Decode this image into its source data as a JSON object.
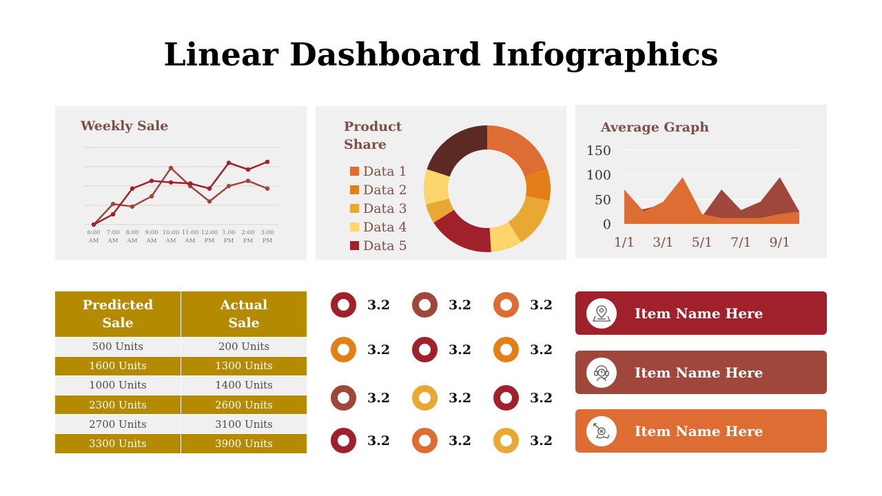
{
  "title": "Linear Dashboard Infographics",
  "colors": {
    "dark_red": "#a0202b",
    "brown_red": "#9e473a",
    "orange": "#dd6d33",
    "deep_orange": "#e27f17",
    "gold": "#e8a833",
    "yellow": "#fcd66a",
    "dark_brown": "#5c2a22",
    "table_gold": "#b38a00",
    "panel_bg": "#f1f0f0",
    "title_brown": "#7b5047"
  },
  "chart_data": [
    {
      "type": "line",
      "title": "Weekly Sale",
      "categories": [
        "6:00 AM",
        "7:00 AM",
        "8:00 AM",
        "9:00 AM",
        "10:00 AM",
        "11:00 AM",
        "12:00 PM",
        "1:00 PM",
        "2:00 PM",
        "3:00 PM"
      ],
      "category_lines": [
        [
          "6:00",
          "AM"
        ],
        [
          "7:00",
          "AM"
        ],
        [
          "8:00",
          "AM"
        ],
        [
          "9:00",
          "AM"
        ],
        [
          "10:00",
          "AM"
        ],
        [
          "11:00",
          "AM"
        ],
        [
          "12:00",
          "PM"
        ],
        [
          "1:00",
          "PM"
        ],
        [
          "2:00",
          "PM"
        ],
        [
          "3:00",
          "PM"
        ]
      ],
      "series": [
        {
          "values": [
            0,
            40,
            35,
            55,
            110,
            75,
            45,
            75,
            85,
            70
          ],
          "color": "#9e473a"
        },
        {
          "values": [
            0,
            20,
            70,
            85,
            82,
            80,
            70,
            120,
            107,
            122
          ],
          "color": "#a0202b"
        }
      ],
      "ylim": [
        0,
        150
      ],
      "grid": true
    },
    {
      "type": "pie",
      "title": "Product Share",
      "donut": true,
      "slices": [
        {
          "label": "Data 1",
          "value": 20,
          "color": "#dd6d33"
        },
        {
          "label": "Data 2",
          "value": 8,
          "color": "#e27f17"
        },
        {
          "label": "Data 3",
          "value": 13,
          "color": "#e8a833"
        },
        {
          "label": "Data 4",
          "value": 8,
          "color": "#fcd66a"
        },
        {
          "label": "Data 5",
          "value": 17,
          "color": "#a0202b"
        },
        {
          "label": "",
          "value": 5,
          "color": "#e8a833"
        },
        {
          "label": "",
          "value": 9,
          "color": "#fcd66a"
        },
        {
          "label": "",
          "value": 20,
          "color": "#5c2a22"
        }
      ],
      "legend": [
        "Data 1",
        "Data 2",
        "Data 3",
        "Data 4",
        "Data 5"
      ],
      "legend_colors": [
        "#dd6d33",
        "#e27f17",
        "#e8a833",
        "#fcd66a",
        "#a0202b"
      ]
    },
    {
      "type": "area",
      "title": "Average Graph",
      "x": [
        "1/1",
        "2/1",
        "3/1",
        "4/1",
        "5/1",
        "6/1",
        "7/1",
        "8/1",
        "9/1",
        "10/1"
      ],
      "x_tick_labels": [
        "1/1",
        "3/1",
        "5/1",
        "7/1",
        "9/1"
      ],
      "yticks": [
        0,
        50,
        100,
        150
      ],
      "ylim": [
        0,
        150
      ],
      "series": [
        {
          "values": [
            28,
            30,
            40,
            5,
            15,
            70,
            28,
            45,
            95,
            25
          ],
          "color": "#9e473a"
        },
        {
          "values": [
            70,
            25,
            45,
            95,
            20,
            12,
            12,
            12,
            20,
            25
          ],
          "color": "#dd6d33"
        }
      ]
    }
  ],
  "table": {
    "headers": [
      [
        "Predicted",
        "Sale"
      ],
      [
        "Actual",
        "Sale"
      ]
    ],
    "rows": [
      [
        "500 Units",
        "200 Units"
      ],
      [
        "1600 Units",
        "1300 Units"
      ],
      [
        "1000 Units",
        "1400 Units"
      ],
      [
        "2300 Units",
        "2600 Units"
      ],
      [
        "2700 Units",
        "3100 Units"
      ],
      [
        "3300 Units",
        "3900 Units"
      ]
    ]
  },
  "rings": [
    {
      "value": "3.2",
      "color": "#a0202b"
    },
    {
      "value": "3.2",
      "color": "#9e473a"
    },
    {
      "value": "3.2",
      "color": "#dd6d33"
    },
    {
      "value": "3.2",
      "color": "#e27f17"
    },
    {
      "value": "3.2",
      "color": "#a0202b"
    },
    {
      "value": "3.2",
      "color": "#e27f17"
    },
    {
      "value": "3.2",
      "color": "#9e473a"
    },
    {
      "value": "3.2",
      "color": "#e8a833"
    },
    {
      "value": "3.2",
      "color": "#a0202b"
    },
    {
      "value": "3.2",
      "color": "#a0202b"
    },
    {
      "value": "3.2",
      "color": "#dd6d33"
    },
    {
      "value": "3.2",
      "color": "#e8a833"
    }
  ],
  "items": [
    {
      "label": "Item Name Here",
      "icon": "map-pin-icon",
      "color": "#a0202b"
    },
    {
      "label": "Item Name Here",
      "icon": "support-agent-icon",
      "color": "#9e473a"
    },
    {
      "label": "Item Name Here",
      "icon": "no-delivery-icon",
      "color": "#dd6d33"
    }
  ]
}
